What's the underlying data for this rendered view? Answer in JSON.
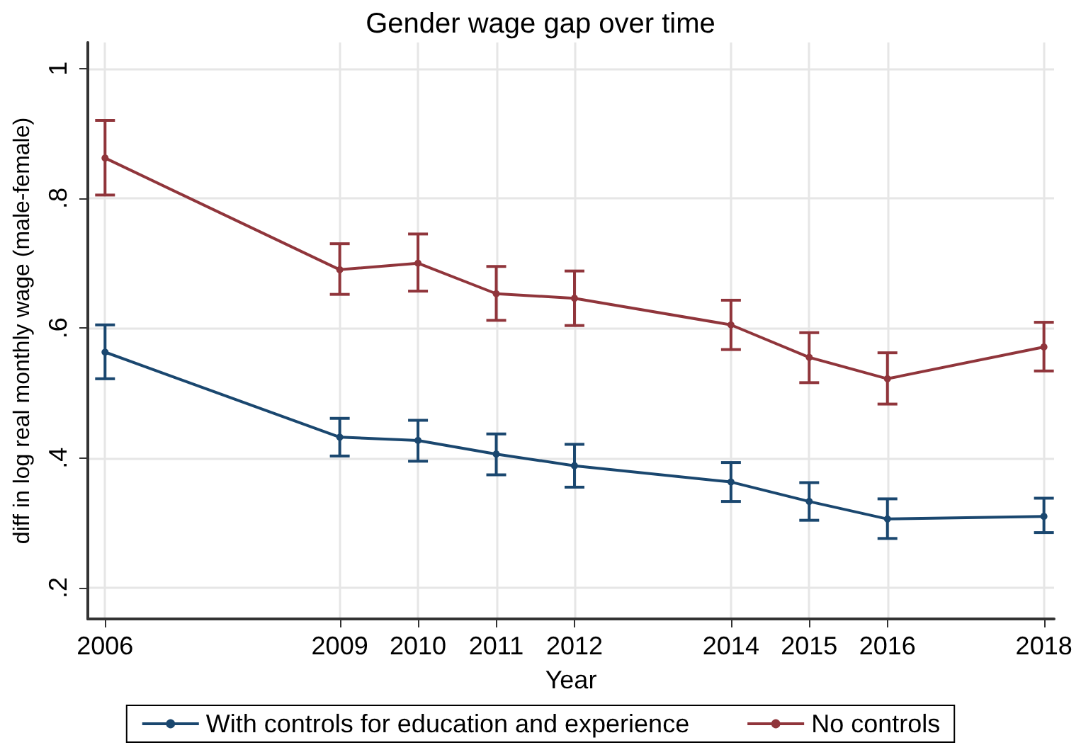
{
  "chart_data": {
    "type": "line",
    "title": "Gender wage gap over time",
    "xlabel": "Year",
    "ylabel": "diff in log real monthly wage (male-female)",
    "x": [
      2006,
      2009,
      2010,
      2011,
      2012,
      2014,
      2015,
      2016,
      2018
    ],
    "xlim": [
      2005.78,
      2018.13
    ],
    "xticks": [
      2006,
      2009,
      2010,
      2011,
      2012,
      2014,
      2015,
      2016,
      2018
    ],
    "ylim": [
      0.152,
      1.04
    ],
    "yticks": [
      {
        "value": 0.2,
        "label": ".2"
      },
      {
        "value": 0.4,
        "label": ".4"
      },
      {
        "value": 0.6,
        "label": ".6"
      },
      {
        "value": 0.8,
        "label": ".8"
      },
      {
        "value": 1,
        "label": "1"
      }
    ],
    "grid": true,
    "legend": "bottom",
    "marker": "circle",
    "line_style": "solid",
    "series": [
      {
        "name": "With controls for education and experience",
        "color": "#1a476f",
        "values": [
          0.563,
          0.432,
          0.427,
          0.406,
          0.388,
          0.363,
          0.333,
          0.306,
          0.31
        ],
        "errors": [
          [
            0.522,
            0.605
          ],
          [
            0.403,
            0.461
          ],
          [
            0.395,
            0.458
          ],
          [
            0.374,
            0.437
          ],
          [
            0.355,
            0.421
          ],
          [
            0.333,
            0.393
          ],
          [
            0.304,
            0.362
          ],
          [
            0.276,
            0.337
          ],
          [
            0.285,
            0.338
          ]
        ]
      },
      {
        "name": "No controls",
        "color": "#90353b",
        "values": [
          0.862,
          0.69,
          0.7,
          0.653,
          0.646,
          0.605,
          0.555,
          0.522,
          0.571
        ],
        "errors": [
          [
            0.805,
            0.92
          ],
          [
            0.652,
            0.73
          ],
          [
            0.657,
            0.745
          ],
          [
            0.612,
            0.695
          ],
          [
            0.604,
            0.688
          ],
          [
            0.567,
            0.643
          ],
          [
            0.516,
            0.593
          ],
          [
            0.483,
            0.562
          ],
          [
            0.534,
            0.609
          ]
        ]
      }
    ]
  }
}
